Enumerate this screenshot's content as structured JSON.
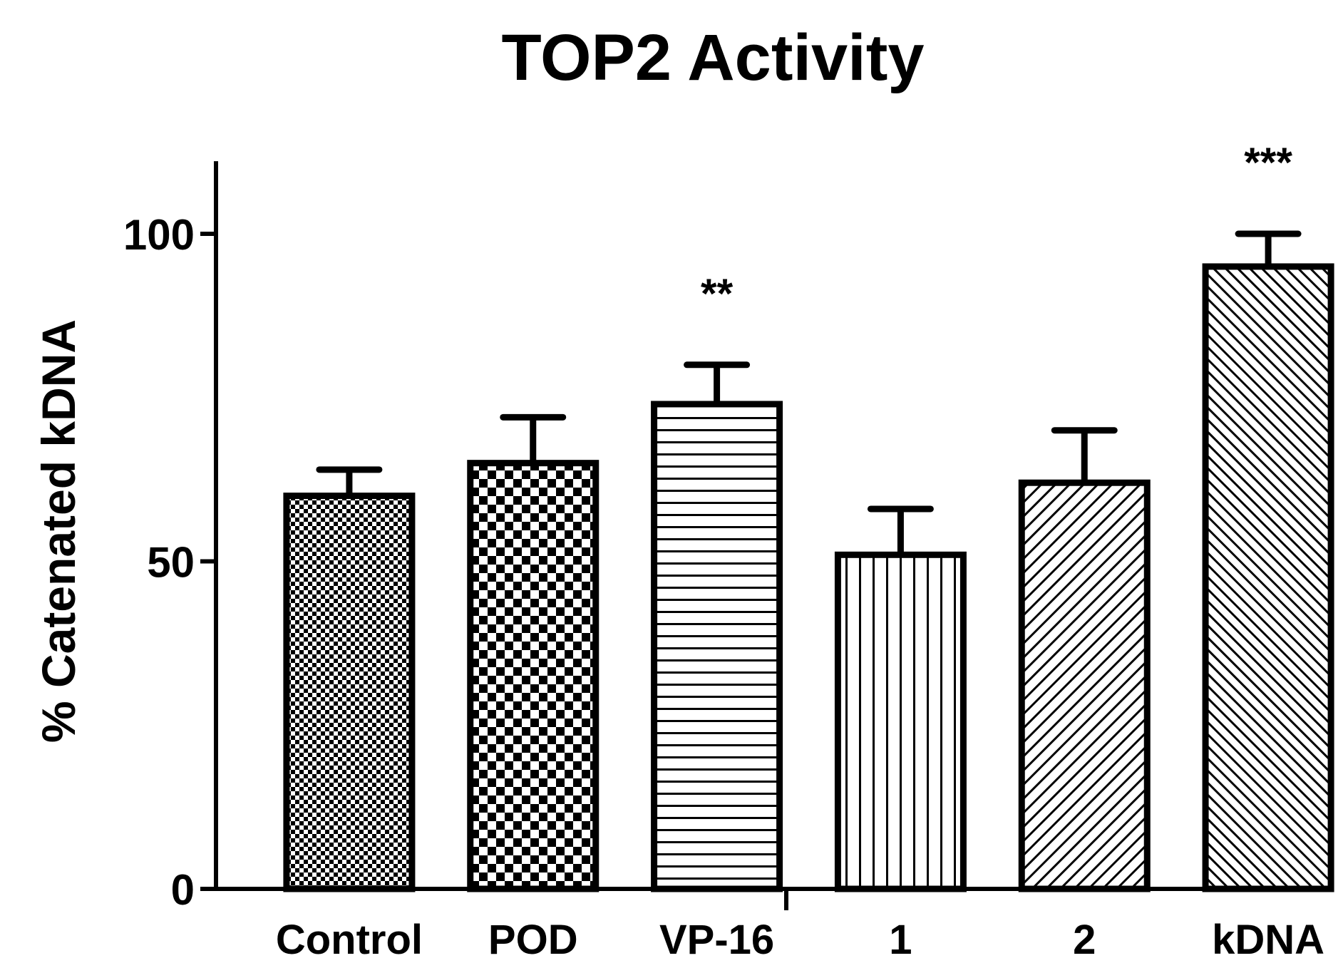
{
  "chart_data": {
    "type": "bar",
    "title": "TOP2 Activity",
    "xlabel": "",
    "ylabel": "% Catenated kDNA",
    "ylim": [
      0,
      110
    ],
    "yticks": [
      0,
      50,
      100
    ],
    "ytick_labels": [
      "0",
      "50",
      "100"
    ],
    "categories": [
      "Control",
      "POD",
      "VP-16",
      "1",
      "2",
      "kDNA"
    ],
    "values": [
      60,
      65,
      74,
      51,
      62,
      95
    ],
    "errors": [
      4,
      7,
      6,
      7,
      8,
      5
    ],
    "significance": [
      "",
      "",
      "**",
      "",
      "",
      "***"
    ],
    "patterns": [
      "fine-checker",
      "coarse-checker",
      "horizontal-lines",
      "vertical-lines",
      "diagonal-fine",
      "diagonal-dense"
    ],
    "colors": {
      "bar_stroke": "#000000",
      "bar_fill": "#ffffff",
      "axis": "#000000"
    }
  }
}
